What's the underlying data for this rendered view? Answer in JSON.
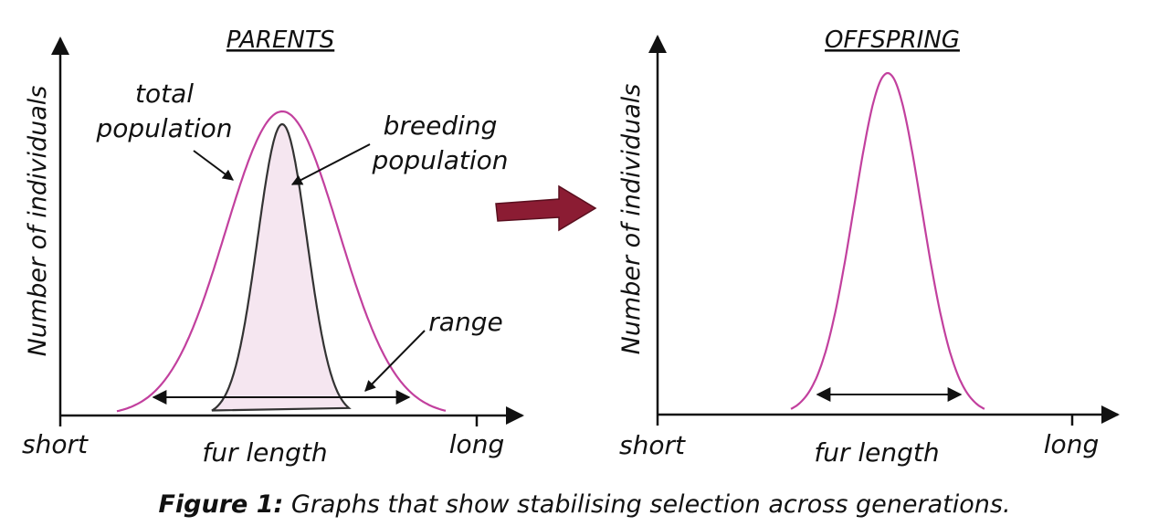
{
  "caption": {
    "prefix": "Figure 1:",
    "text": " Graphs that show stabilising selection across generations."
  },
  "parents": {
    "title": "PARENTS",
    "y_label": "Number of individuals",
    "x_label": "fur length",
    "x_left": "short",
    "x_right": "long",
    "total_population_label": [
      "total",
      "population"
    ],
    "breeding_population_label": [
      "breeding",
      "population"
    ],
    "range_label": "range"
  },
  "offspring": {
    "title": "OFFSPRING",
    "y_label": "Number of individuals",
    "x_label": "fur length",
    "x_left": "short",
    "x_right": "long"
  },
  "colors": {
    "total_curve": "#c2409e",
    "offspring_curve": "#c2409e",
    "breeding_fill": "#f5e6f0",
    "breeding_stroke": "#333333",
    "arrow_fill": "#8b1c33",
    "axis": "#111111"
  }
}
